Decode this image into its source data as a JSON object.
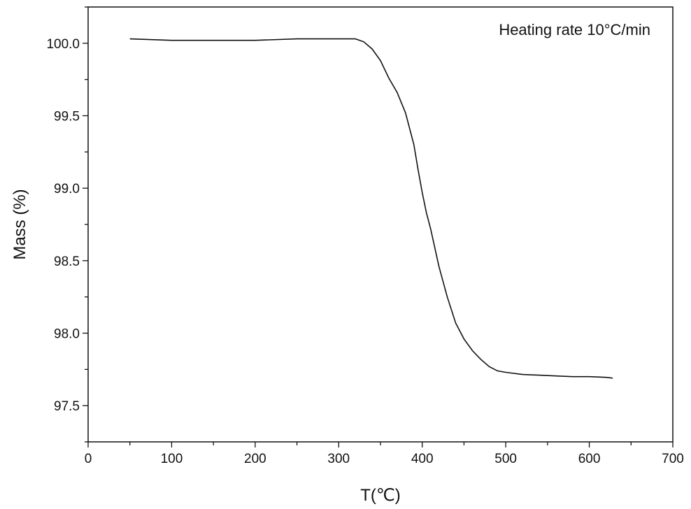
{
  "chart_data": {
    "type": "line",
    "title": "",
    "xlabel": "T(℃)",
    "ylabel": "Mass (%)",
    "xlim": [
      0,
      700
    ],
    "ylim": [
      97.25,
      100.25
    ],
    "x_ticks": [
      "0",
      "100",
      "200",
      "300",
      "400",
      "500",
      "600",
      "700"
    ],
    "y_ticks": [
      "97.5",
      "98.0",
      "98.5",
      "99.0",
      "99.5",
      "100.0"
    ],
    "grid": false,
    "legend": "none",
    "annotation": "Heating rate 10°C/min",
    "series": [
      {
        "color": "#111111",
        "x": [
          50,
          100,
          150,
          200,
          250,
          300,
          320,
          330,
          340,
          350,
          360,
          370,
          380,
          390,
          395,
          400,
          405,
          410,
          420,
          430,
          440,
          450,
          460,
          470,
          480,
          490,
          500,
          520,
          540,
          560,
          580,
          600,
          620,
          628
        ],
        "y": [
          100.03,
          100.02,
          100.02,
          100.02,
          100.03,
          100.03,
          100.03,
          100.01,
          99.96,
          99.88,
          99.76,
          99.66,
          99.52,
          99.3,
          99.13,
          98.97,
          98.83,
          98.72,
          98.46,
          98.25,
          98.07,
          97.96,
          97.88,
          97.82,
          97.77,
          97.74,
          97.73,
          97.715,
          97.71,
          97.705,
          97.7,
          97.7,
          97.695,
          97.69
        ]
      }
    ]
  }
}
